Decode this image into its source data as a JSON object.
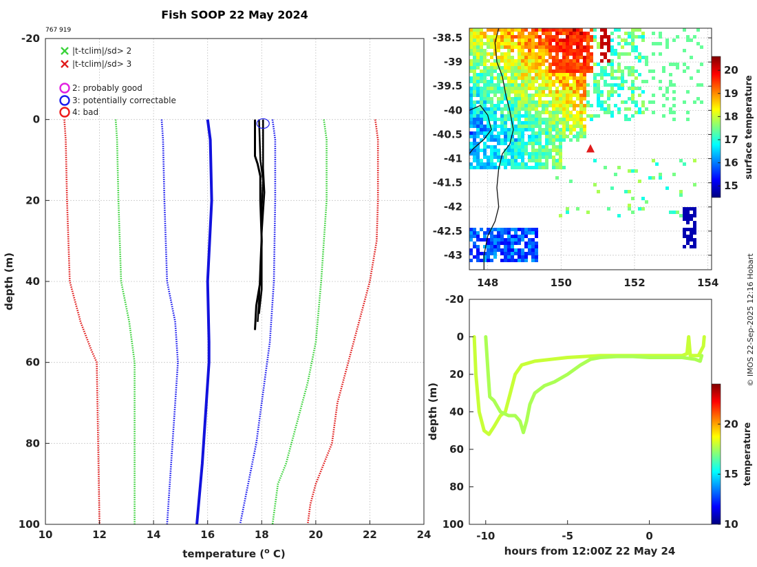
{
  "figure": {
    "title": "Fish SOOP 22 May 2024",
    "id_label": "767 919",
    "credit": "© IMOS 22-Sep-2025 12:16 Hobart"
  },
  "legend": {
    "items": [
      {
        "marker": "x",
        "color": "#3ad23a",
        "label": "|t-tclim|/sd> 2"
      },
      {
        "marker": "x",
        "color": "#e01b1b",
        "label": "|t-tclim|/sd> 3"
      },
      {
        "marker": "o",
        "color": "#e020e0",
        "label": "2: probably good"
      },
      {
        "marker": "o",
        "color": "#1a1aee",
        "label": "3: potentially correctable"
      },
      {
        "marker": "o",
        "color": "#ee1a1a",
        "label": "4: bad"
      }
    ]
  },
  "chart_data": [
    {
      "type": "line",
      "name": "profile",
      "title": "Fish SOOP 22 May 2024",
      "xlabel": "temperature (",
      "xlabel_sup": "o",
      "xlabel_end": " C)",
      "ylabel": "depth (m)",
      "xlim": [
        10,
        24
      ],
      "ylim": [
        -20,
        100
      ],
      "y_reversed": true,
      "xticks": [
        10,
        12,
        14,
        16,
        18,
        20,
        22,
        24
      ],
      "yticks": [
        -20,
        0,
        20,
        40,
        60,
        80,
        100
      ],
      "grid": true,
      "series": [
        {
          "name": "climatology minus 3sd",
          "color": "#e01b1b",
          "style": "dotted",
          "width": 2.6,
          "points": [
            [
              10.7,
              0
            ],
            [
              10.75,
              5
            ],
            [
              10.8,
              20
            ],
            [
              10.9,
              40
            ],
            [
              11.3,
              50
            ],
            [
              11.7,
              57
            ],
            [
              11.9,
              60
            ],
            [
              11.95,
              80
            ],
            [
              12.0,
              100
            ]
          ]
        },
        {
          "name": "climatology minus 2sd",
          "color": "#3ad23a",
          "style": "dotted",
          "width": 2.6,
          "points": [
            [
              12.6,
              0
            ],
            [
              12.65,
              5
            ],
            [
              12.7,
              20
            ],
            [
              12.8,
              40
            ],
            [
              13.1,
              50
            ],
            [
              13.3,
              60
            ],
            [
              13.3,
              80
            ],
            [
              13.3,
              100
            ]
          ]
        },
        {
          "name": "climatology minus 1sd",
          "color": "#1a1aee",
          "style": "dotted",
          "width": 2.6,
          "points": [
            [
              14.3,
              0
            ],
            [
              14.35,
              5
            ],
            [
              14.4,
              20
            ],
            [
              14.5,
              40
            ],
            [
              14.8,
              50
            ],
            [
              14.9,
              60
            ],
            [
              14.8,
              70
            ],
            [
              14.6,
              90
            ],
            [
              14.5,
              100
            ]
          ]
        },
        {
          "name": "climatology mean",
          "color": "#1212dd",
          "style": "solid",
          "width": 4,
          "points": [
            [
              16.0,
              0
            ],
            [
              16.1,
              5
            ],
            [
              16.15,
              20
            ],
            [
              16.0,
              40
            ],
            [
              16.05,
              55
            ],
            [
              16.05,
              60
            ],
            [
              15.95,
              70
            ],
            [
              15.8,
              85
            ],
            [
              15.6,
              100
            ]
          ]
        },
        {
          "name": "climatology plus 1sd",
          "color": "#1a1aee",
          "style": "dotted",
          "width": 2.6,
          "points": [
            [
              18.4,
              0
            ],
            [
              18.5,
              5
            ],
            [
              18.5,
              20
            ],
            [
              18.45,
              40
            ],
            [
              18.3,
              55
            ],
            [
              18.1,
              65
            ],
            [
              17.8,
              80
            ],
            [
              17.5,
              90
            ],
            [
              17.2,
              100
            ]
          ]
        },
        {
          "name": "climatology plus 2sd",
          "color": "#3ad23a",
          "style": "dotted",
          "width": 2.6,
          "points": [
            [
              20.3,
              0
            ],
            [
              20.4,
              5
            ],
            [
              20.4,
              20
            ],
            [
              20.2,
              40
            ],
            [
              20.0,
              55
            ],
            [
              19.7,
              65
            ],
            [
              19.3,
              75
            ],
            [
              18.9,
              85
            ],
            [
              18.6,
              90
            ],
            [
              18.4,
              100
            ]
          ]
        },
        {
          "name": "climatology plus 3sd",
          "color": "#e01b1b",
          "style": "dotted",
          "width": 2.6,
          "points": [
            [
              22.2,
              0
            ],
            [
              22.3,
              5
            ],
            [
              22.3,
              20
            ],
            [
              22.25,
              30
            ],
            [
              22.0,
              40
            ],
            [
              21.6,
              50
            ],
            [
              21.2,
              60
            ],
            [
              20.8,
              70
            ],
            [
              20.6,
              80
            ],
            [
              20.3,
              85
            ],
            [
              20.0,
              90
            ],
            [
              19.8,
              95
            ],
            [
              19.7,
              100
            ]
          ]
        },
        {
          "name": "measured profile cast 1",
          "color": "#000000",
          "style": "solid",
          "width": 3,
          "points": [
            [
              17.75,
              0
            ],
            [
              17.75,
              9
            ],
            [
              17.85,
              11
            ],
            [
              17.95,
              14
            ],
            [
              17.95,
              20
            ],
            [
              18.0,
              30
            ],
            [
              17.95,
              40
            ],
            [
              17.8,
              46
            ],
            [
              17.75,
              52
            ]
          ]
        },
        {
          "name": "measured profile cast 2",
          "color": "#000000",
          "style": "solid",
          "width": 2.5,
          "points": [
            [
              17.9,
              0
            ],
            [
              17.95,
              10
            ],
            [
              18.05,
              15
            ],
            [
              18.0,
              22
            ],
            [
              18.0,
              32
            ],
            [
              18.0,
              42
            ],
            [
              17.9,
              48
            ]
          ]
        },
        {
          "name": "measured profile cast 3",
          "color": "#000000",
          "style": "solid",
          "width": 2.5,
          "points": [
            [
              18.05,
              0
            ],
            [
              18.05,
              12
            ],
            [
              18.1,
              18
            ],
            [
              18.0,
              28
            ],
            [
              17.95,
              36
            ],
            [
              17.9,
              45
            ],
            [
              17.85,
              50
            ]
          ]
        }
      ],
      "flags": [
        {
          "type": "circle",
          "color": "#1a1aee",
          "x": 18.05,
          "y": 1
        }
      ]
    },
    {
      "type": "heatmap",
      "name": "surface temperature map",
      "xlim": [
        147.5,
        154.1
      ],
      "ylim": [
        -43.3,
        -38.3
      ],
      "xticks": [
        148,
        150,
        152,
        154
      ],
      "yticks": [
        -38.5,
        -39,
        -39.5,
        -40,
        -40.5,
        -41,
        -41.5,
        -42,
        -42.5,
        -43
      ],
      "grid": true,
      "colorbar": {
        "label": "surface temperature",
        "min": 14.5,
        "max": 20.6,
        "ticks": [
          15,
          16,
          17,
          18,
          19,
          20
        ]
      },
      "marker": {
        "type": "triangle",
        "color": "#e01b1b",
        "lon": 150.8,
        "lat": -40.8
      }
    },
    {
      "type": "scatter",
      "name": "depth time section",
      "xlabel": "hours from 12:00Z 22 May 24",
      "ylabel": "depth (m)",
      "xlim": [
        -11,
        3.8
      ],
      "ylim": [
        -20,
        100
      ],
      "y_reversed": true,
      "xticks": [
        -10,
        -5,
        0
      ],
      "yticks": [
        -20,
        0,
        20,
        40,
        60,
        80,
        100
      ],
      "colorbar": {
        "label": "temperature",
        "min": 10,
        "max": 24,
        "ticks": [
          10,
          15,
          20
        ]
      },
      "series": [
        {
          "name": "cast 1",
          "temperature": 18.0,
          "points": [
            [
              -10.7,
              0
            ],
            [
              -10.6,
              20
            ],
            [
              -10.4,
              40
            ],
            [
              -10.1,
              50
            ],
            [
              -9.8,
              52
            ],
            [
              -9.5,
              48
            ],
            [
              -9.1,
              42
            ],
            [
              -8.8,
              40
            ],
            [
              -8.5,
              30
            ],
            [
              -8.2,
              20
            ],
            [
              -7.8,
              15
            ],
            [
              -7.0,
              13
            ],
            [
              -6.0,
              12
            ],
            [
              -5.0,
              11
            ],
            [
              -4.0,
              10.5
            ],
            [
              -3.0,
              10
            ],
            [
              -2.0,
              10
            ],
            [
              -1.0,
              10
            ],
            [
              0,
              10
            ],
            [
              1.0,
              10
            ],
            [
              2.0,
              10
            ],
            [
              2.3,
              9
            ],
            [
              2.4,
              0
            ],
            [
              2.5,
              10
            ],
            [
              3.0,
              10
            ],
            [
              3.3,
              5
            ],
            [
              3.35,
              0
            ]
          ]
        },
        {
          "name": "cast 2",
          "temperature": 17.6,
          "points": [
            [
              -10.0,
              0
            ],
            [
              -9.85,
              20
            ],
            [
              -9.75,
              32
            ],
            [
              -9.5,
              34
            ],
            [
              -9.1,
              40
            ],
            [
              -8.6,
              42
            ],
            [
              -8.2,
              42
            ],
            [
              -7.9,
              45
            ],
            [
              -7.7,
              51
            ],
            [
              -7.5,
              45
            ],
            [
              -7.3,
              36
            ],
            [
              -7.0,
              30
            ],
            [
              -6.4,
              26
            ],
            [
              -5.8,
              24
            ],
            [
              -5.0,
              20
            ],
            [
              -4.2,
              15
            ],
            [
              -3.6,
              12
            ],
            [
              -3.0,
              11
            ],
            [
              -2.0,
              10.5
            ],
            [
              -1.0,
              10.5
            ],
            [
              0,
              11
            ],
            [
              1.0,
              11
            ],
            [
              2.0,
              11
            ],
            [
              2.8,
              12
            ],
            [
              3.1,
              13
            ],
            [
              3.2,
              10
            ]
          ]
        }
      ]
    }
  ]
}
